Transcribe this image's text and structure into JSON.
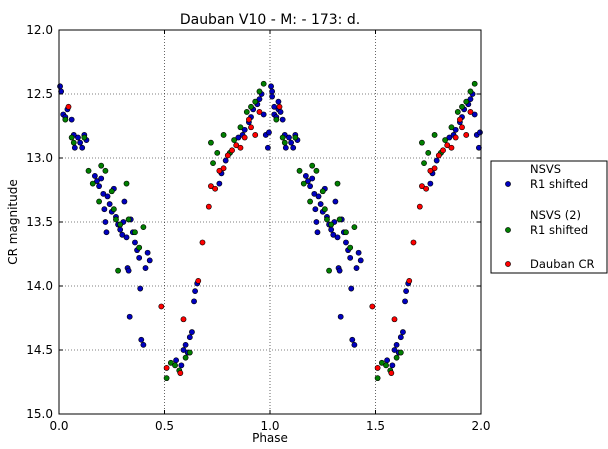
{
  "chart_data": {
    "type": "scatter",
    "title": "Dauban V10 - M: - 173: d.",
    "xlabel": "Phase",
    "ylabel": "CR magnitude",
    "xlim": [
      0.0,
      2.0
    ],
    "ylim": [
      15.0,
      12.0
    ],
    "y_inverted": true,
    "x_ticks": [
      "0.0",
      "0.5",
      "1.0",
      "1.5",
      "2.0"
    ],
    "y_ticks": [
      "12.0",
      "12.5",
      "13.0",
      "13.5",
      "14.0",
      "14.5",
      "15.0"
    ],
    "grid": true,
    "legend_position": "outside-right",
    "series": [
      {
        "name": "NSVS\nR1 shifted",
        "color": "#0000bf",
        "points": [
          [
            0.005,
            12.44
          ],
          [
            0.01,
            12.48
          ],
          [
            0.02,
            12.66
          ],
          [
            0.03,
            12.68
          ],
          [
            0.04,
            12.62
          ],
          [
            0.06,
            12.7
          ],
          [
            0.07,
            12.82
          ],
          [
            0.075,
            12.92
          ],
          [
            0.09,
            12.84
          ],
          [
            0.1,
            12.88
          ],
          [
            0.11,
            12.92
          ],
          [
            0.12,
            12.82
          ],
          [
            0.13,
            12.86
          ],
          [
            0.17,
            13.14
          ],
          [
            0.18,
            13.18
          ],
          [
            0.19,
            13.22
          ],
          [
            0.2,
            13.16
          ],
          [
            0.21,
            13.28
          ],
          [
            0.215,
            13.4
          ],
          [
            0.22,
            13.5
          ],
          [
            0.225,
            13.58
          ],
          [
            0.23,
            13.3
          ],
          [
            0.24,
            13.36
          ],
          [
            0.25,
            13.42
          ],
          [
            0.26,
            13.24
          ],
          [
            0.27,
            13.46
          ],
          [
            0.28,
            13.52
          ],
          [
            0.29,
            13.56
          ],
          [
            0.3,
            13.6
          ],
          [
            0.305,
            13.5
          ],
          [
            0.31,
            13.34
          ],
          [
            0.32,
            13.62
          ],
          [
            0.325,
            13.86
          ],
          [
            0.33,
            13.88
          ],
          [
            0.335,
            14.24
          ],
          [
            0.34,
            13.48
          ],
          [
            0.35,
            13.58
          ],
          [
            0.36,
            13.66
          ],
          [
            0.37,
            13.72
          ],
          [
            0.38,
            13.78
          ],
          [
            0.385,
            14.02
          ],
          [
            0.39,
            14.42
          ],
          [
            0.4,
            14.46
          ],
          [
            0.41,
            13.86
          ],
          [
            0.42,
            13.74
          ],
          [
            0.43,
            13.8
          ],
          [
            0.555,
            14.58
          ],
          [
            0.58,
            14.62
          ],
          [
            0.59,
            14.5
          ],
          [
            0.6,
            14.46
          ],
          [
            0.61,
            14.52
          ],
          [
            0.62,
            14.4
          ],
          [
            0.63,
            14.36
          ],
          [
            0.64,
            14.12
          ],
          [
            0.645,
            14.04
          ],
          [
            0.655,
            13.98
          ],
          [
            0.76,
            13.2
          ],
          [
            0.77,
            13.12
          ],
          [
            0.79,
            13.02
          ],
          [
            0.81,
            12.96
          ],
          [
            0.85,
            12.84
          ],
          [
            0.87,
            12.82
          ],
          [
            0.88,
            12.78
          ],
          [
            0.9,
            12.72
          ],
          [
            0.91,
            12.68
          ],
          [
            0.92,
            12.62
          ],
          [
            0.94,
            12.58
          ],
          [
            0.95,
            12.54
          ],
          [
            0.96,
            12.5
          ],
          [
            0.97,
            12.66
          ],
          [
            0.98,
            12.82
          ],
          [
            0.99,
            12.92
          ],
          [
            0.995,
            12.8
          ],
          [
            1.01,
            12.52
          ],
          [
            1.02,
            12.6
          ],
          [
            1.04,
            12.56
          ],
          [
            1.05,
            12.64
          ]
        ]
      },
      {
        "name": "NSVS (2)\nR1 shifted",
        "color": "#007f00",
        "points": [
          [
            0.03,
            12.7
          ],
          [
            0.06,
            12.84
          ],
          [
            0.07,
            12.88
          ],
          [
            0.12,
            12.84
          ],
          [
            0.14,
            13.1
          ],
          [
            0.16,
            13.2
          ],
          [
            0.19,
            13.34
          ],
          [
            0.2,
            13.06
          ],
          [
            0.22,
            13.1
          ],
          [
            0.25,
            13.26
          ],
          [
            0.26,
            13.4
          ],
          [
            0.27,
            13.48
          ],
          [
            0.28,
            13.88
          ],
          [
            0.29,
            13.52
          ],
          [
            0.32,
            13.2
          ],
          [
            0.33,
            13.48
          ],
          [
            0.36,
            13.58
          ],
          [
            0.38,
            13.7
          ],
          [
            0.4,
            13.54
          ],
          [
            0.51,
            14.72
          ],
          [
            0.53,
            14.6
          ],
          [
            0.55,
            14.62
          ],
          [
            0.57,
            14.66
          ],
          [
            0.6,
            14.56
          ],
          [
            0.62,
            14.52
          ],
          [
            0.72,
            12.88
          ],
          [
            0.73,
            13.04
          ],
          [
            0.75,
            12.96
          ],
          [
            0.78,
            12.82
          ],
          [
            0.81,
            12.96
          ],
          [
            0.83,
            12.86
          ],
          [
            0.86,
            12.76
          ],
          [
            0.89,
            12.64
          ],
          [
            0.91,
            12.6
          ],
          [
            0.93,
            12.56
          ],
          [
            0.95,
            12.48
          ],
          [
            0.97,
            12.42
          ]
        ]
      },
      {
        "name": "Dauban CR",
        "color": "#ff0000",
        "points": [
          [
            0.045,
            12.6
          ],
          [
            0.485,
            14.16
          ],
          [
            0.51,
            14.64
          ],
          [
            0.575,
            14.68
          ],
          [
            0.59,
            14.26
          ],
          [
            0.66,
            13.96
          ],
          [
            0.68,
            13.66
          ],
          [
            0.71,
            13.38
          ],
          [
            0.72,
            13.22
          ],
          [
            0.74,
            13.24
          ],
          [
            0.76,
            13.1
          ],
          [
            0.78,
            13.08
          ],
          [
            0.8,
            12.98
          ],
          [
            0.82,
            12.94
          ],
          [
            0.84,
            12.9
          ],
          [
            0.86,
            12.92
          ],
          [
            0.88,
            12.84
          ],
          [
            0.9,
            12.7
          ],
          [
            0.91,
            12.76
          ],
          [
            0.93,
            12.82
          ],
          [
            0.95,
            12.64
          ]
        ]
      }
    ]
  }
}
